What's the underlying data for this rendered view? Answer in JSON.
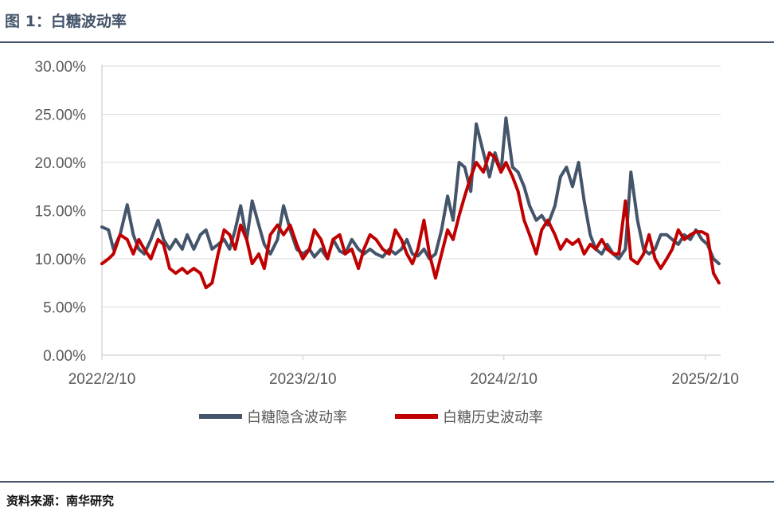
{
  "figure": {
    "title": "图 1：白糖波动率",
    "source": "资料来源：南华研究"
  },
  "colors": {
    "implied": "#44546a",
    "historical": "#c00000",
    "rule": "#44546a",
    "axis": "#d9d9d9",
    "grid": "#d9d9d9"
  },
  "chart_data": {
    "type": "line",
    "title": "",
    "xlabel": "",
    "ylabel": "",
    "x_ticks": [
      "2022/2/10",
      "2023/2/10",
      "2024/2/10",
      "2025/2/10"
    ],
    "x_range": [
      "2022/2/10",
      "2025/3/10"
    ],
    "y_ticks": [
      "0.00%",
      "5.00%",
      "10.00%",
      "15.00%",
      "20.00%",
      "25.00%",
      "30.00%"
    ],
    "ylim": [
      0,
      30
    ],
    "grid": "horizontal",
    "legend_position": "bottom",
    "series": [
      {
        "name": "白糖隐含波动率",
        "color": "#44546a",
        "points": [
          [
            "2022/2/10",
            13.3
          ],
          [
            "2022/2/22",
            13.0
          ],
          [
            "2022/3/3",
            11.0
          ],
          [
            "2022/3/15",
            12.5
          ],
          [
            "2022/3/28",
            15.6
          ],
          [
            "2022/4/8",
            12.5
          ],
          [
            "2022/4/18",
            11.0
          ],
          [
            "2022/4/28",
            10.5
          ],
          [
            "2022/5/10",
            12.0
          ],
          [
            "2022/5/23",
            14.0
          ],
          [
            "2022/6/2",
            12.0
          ],
          [
            "2022/6/13",
            11.0
          ],
          [
            "2022/6/24",
            12.0
          ],
          [
            "2022/7/6",
            11.0
          ],
          [
            "2022/7/15",
            12.5
          ],
          [
            "2022/7/27",
            11.0
          ],
          [
            "2022/8/8",
            12.5
          ],
          [
            "2022/8/18",
            13.0
          ],
          [
            "2022/8/29",
            11.0
          ],
          [
            "2022/9/9",
            11.5
          ],
          [
            "2022/9/20",
            12.0
          ],
          [
            "2022/9/30",
            11.0
          ],
          [
            "2022/10/10",
            13.0
          ],
          [
            "2022/10/20",
            15.5
          ],
          [
            "2022/10/31",
            12.0
          ],
          [
            "2022/11/10",
            16.0
          ],
          [
            "2022/11/22",
            13.5
          ],
          [
            "2022/12/2",
            11.5
          ],
          [
            "2022/12/13",
            10.5
          ],
          [
            "2022/12/26",
            12.0
          ],
          [
            "2023/1/6",
            15.5
          ],
          [
            "2023/1/18",
            13.0
          ],
          [
            "2023/1/30",
            11.0
          ],
          [
            "2023/2/10",
            10.5
          ],
          [
            "2023/2/22",
            11.0
          ],
          [
            "2023/3/3",
            10.2
          ],
          [
            "2023/3/15",
            11.0
          ],
          [
            "2023/3/27",
            10.0
          ],
          [
            "2023/4/6",
            12.0
          ],
          [
            "2023/4/18",
            10.8
          ],
          [
            "2023/4/28",
            10.5
          ],
          [
            "2023/5/10",
            12.0
          ],
          [
            "2023/5/22",
            11.0
          ],
          [
            "2023/6/1",
            10.5
          ],
          [
            "2023/6/12",
            11.0
          ],
          [
            "2023/6/23",
            10.5
          ],
          [
            "2023/7/5",
            10.2
          ],
          [
            "2023/7/17",
            11.0
          ],
          [
            "2023/7/28",
            10.5
          ],
          [
            "2023/8/8",
            11.0
          ],
          [
            "2023/8/18",
            12.0
          ],
          [
            "2023/8/28",
            10.5
          ],
          [
            "2023/9/7",
            10.3
          ],
          [
            "2023/9/18",
            11.0
          ],
          [
            "2023/9/28",
            10.0
          ],
          [
            "2023/10/9",
            10.5
          ],
          [
            "2023/10/20",
            13.0
          ],
          [
            "2023/10/31",
            16.5
          ],
          [
            "2023/11/10",
            14.0
          ],
          [
            "2023/11/21",
            20.0
          ],
          [
            "2023/12/1",
            19.5
          ],
          [
            "2023/12/12",
            17.0
          ],
          [
            "2023/12/22",
            24.0
          ],
          [
            "2024/1/4",
            21.0
          ],
          [
            "2024/1/15",
            18.5
          ],
          [
            "2024/1/25",
            21.0
          ],
          [
            "2024/2/5",
            19.0
          ],
          [
            "2024/2/14",
            24.6
          ],
          [
            "2024/2/26",
            19.5
          ],
          [
            "2024/3/7",
            19.0
          ],
          [
            "2024/3/18",
            17.5
          ],
          [
            "2024/3/28",
            15.5
          ],
          [
            "2024/4/9",
            14.0
          ],
          [
            "2024/4/19",
            14.5
          ],
          [
            "2024/4/30",
            13.5
          ],
          [
            "2024/5/13",
            15.5
          ],
          [
            "2024/5/23",
            18.5
          ],
          [
            "2024/6/3",
            19.5
          ],
          [
            "2024/6/14",
            17.5
          ],
          [
            "2024/6/25",
            20.0
          ],
          [
            "2024/7/5",
            16.0
          ],
          [
            "2024/7/16",
            12.5
          ],
          [
            "2024/7/26",
            11.0
          ],
          [
            "2024/8/6",
            10.5
          ],
          [
            "2024/8/16",
            11.5
          ],
          [
            "2024/8/27",
            10.5
          ],
          [
            "2024/9/6",
            10.0
          ],
          [
            "2024/9/18",
            11.0
          ],
          [
            "2024/9/28",
            19.0
          ],
          [
            "2024/10/10",
            14.0
          ],
          [
            "2024/10/21",
            11.0
          ],
          [
            "2024/10/31",
            10.5
          ],
          [
            "2024/11/11",
            11.0
          ],
          [
            "2024/11/21",
            12.5
          ],
          [
            "2024/12/2",
            12.5
          ],
          [
            "2024/12/12",
            12.0
          ],
          [
            "2024/12/23",
            11.5
          ],
          [
            "2025/1/3",
            12.5
          ],
          [
            "2025/1/14",
            12.0
          ],
          [
            "2025/1/24",
            13.0
          ],
          [
            "2025/2/4",
            12.0
          ],
          [
            "2025/2/14",
            11.5
          ],
          [
            "2025/2/25",
            10.0
          ],
          [
            "2025/3/7",
            9.5
          ]
        ]
      },
      {
        "name": "白糖历史波动率",
        "color": "#c00000",
        "points": [
          [
            "2022/2/10",
            9.5
          ],
          [
            "2022/2/22",
            10.0
          ],
          [
            "2022/3/3",
            10.5
          ],
          [
            "2022/3/15",
            12.5
          ],
          [
            "2022/3/28",
            12.0
          ],
          [
            "2022/4/8",
            10.5
          ],
          [
            "2022/4/18",
            12.0
          ],
          [
            "2022/4/28",
            11.0
          ],
          [
            "2022/5/10",
            10.0
          ],
          [
            "2022/5/23",
            12.0
          ],
          [
            "2022/6/2",
            11.5
          ],
          [
            "2022/6/13",
            9.0
          ],
          [
            "2022/6/24",
            8.5
          ],
          [
            "2022/7/6",
            9.0
          ],
          [
            "2022/7/15",
            8.5
          ],
          [
            "2022/7/27",
            9.0
          ],
          [
            "2022/8/8",
            8.5
          ],
          [
            "2022/8/18",
            7.0
          ],
          [
            "2022/8/29",
            7.5
          ],
          [
            "2022/9/9",
            10.5
          ],
          [
            "2022/9/20",
            13.0
          ],
          [
            "2022/9/30",
            12.5
          ],
          [
            "2022/10/10",
            11.0
          ],
          [
            "2022/10/20",
            13.5
          ],
          [
            "2022/10/31",
            12.0
          ],
          [
            "2022/11/10",
            9.5
          ],
          [
            "2022/11/22",
            10.5
          ],
          [
            "2022/12/2",
            9.0
          ],
          [
            "2022/12/13",
            12.5
          ],
          [
            "2022/12/26",
            13.5
          ],
          [
            "2023/1/6",
            12.5
          ],
          [
            "2023/1/18",
            13.5
          ],
          [
            "2023/1/30",
            11.5
          ],
          [
            "2023/2/10",
            10.0
          ],
          [
            "2023/2/22",
            11.0
          ],
          [
            "2023/3/3",
            13.0
          ],
          [
            "2023/3/15",
            12.0
          ],
          [
            "2023/3/27",
            10.0
          ],
          [
            "2023/4/6",
            12.0
          ],
          [
            "2023/4/18",
            12.5
          ],
          [
            "2023/4/28",
            10.5
          ],
          [
            "2023/5/10",
            11.0
          ],
          [
            "2023/5/22",
            9.0
          ],
          [
            "2023/6/1",
            11.0
          ],
          [
            "2023/6/12",
            12.5
          ],
          [
            "2023/6/23",
            12.0
          ],
          [
            "2023/7/5",
            11.0
          ],
          [
            "2023/7/17",
            10.5
          ],
          [
            "2023/7/28",
            13.0
          ],
          [
            "2023/8/8",
            12.0
          ],
          [
            "2023/8/18",
            10.5
          ],
          [
            "2023/8/28",
            9.5
          ],
          [
            "2023/9/7",
            11.0
          ],
          [
            "2023/9/18",
            14.0
          ],
          [
            "2023/9/28",
            10.5
          ],
          [
            "2023/10/9",
            8.0
          ],
          [
            "2023/10/20",
            10.5
          ],
          [
            "2023/10/31",
            13.0
          ],
          [
            "2023/11/10",
            12.0
          ],
          [
            "2023/11/21",
            14.5
          ],
          [
            "2023/12/1",
            16.5
          ],
          [
            "2023/12/12",
            18.5
          ],
          [
            "2023/12/22",
            20.0
          ],
          [
            "2024/1/4",
            19.0
          ],
          [
            "2024/1/15",
            21.0
          ],
          [
            "2024/1/25",
            20.5
          ],
          [
            "2024/2/5",
            19.0
          ],
          [
            "2024/2/14",
            20.0
          ],
          [
            "2024/2/26",
            18.5
          ],
          [
            "2024/3/7",
            17.0
          ],
          [
            "2024/3/18",
            14.0
          ],
          [
            "2024/3/28",
            12.5
          ],
          [
            "2024/4/9",
            10.5
          ],
          [
            "2024/4/19",
            13.0
          ],
          [
            "2024/4/30",
            14.0
          ],
          [
            "2024/5/13",
            12.5
          ],
          [
            "2024/5/23",
            11.0
          ],
          [
            "2024/6/3",
            12.0
          ],
          [
            "2024/6/14",
            11.5
          ],
          [
            "2024/6/25",
            12.0
          ],
          [
            "2024/7/5",
            10.5
          ],
          [
            "2024/7/16",
            11.5
          ],
          [
            "2024/7/26",
            11.0
          ],
          [
            "2024/8/6",
            12.0
          ],
          [
            "2024/8/16",
            11.0
          ],
          [
            "2024/8/27",
            10.5
          ],
          [
            "2024/9/6",
            10.5
          ],
          [
            "2024/9/18",
            16.0
          ],
          [
            "2024/9/28",
            10.0
          ],
          [
            "2024/10/10",
            9.5
          ],
          [
            "2024/10/21",
            10.5
          ],
          [
            "2024/10/31",
            12.5
          ],
          [
            "2024/11/11",
            10.0
          ],
          [
            "2024/11/21",
            9.0
          ],
          [
            "2024/12/2",
            10.0
          ],
          [
            "2024/12/12",
            11.0
          ],
          [
            "2024/12/23",
            13.0
          ],
          [
            "2025/1/3",
            12.0
          ],
          [
            "2025/1/14",
            12.5
          ],
          [
            "2025/1/24",
            12.8
          ],
          [
            "2025/2/4",
            12.8
          ],
          [
            "2025/2/14",
            12.5
          ],
          [
            "2025/2/25",
            8.5
          ],
          [
            "2025/3/7",
            7.5
          ]
        ]
      }
    ]
  }
}
